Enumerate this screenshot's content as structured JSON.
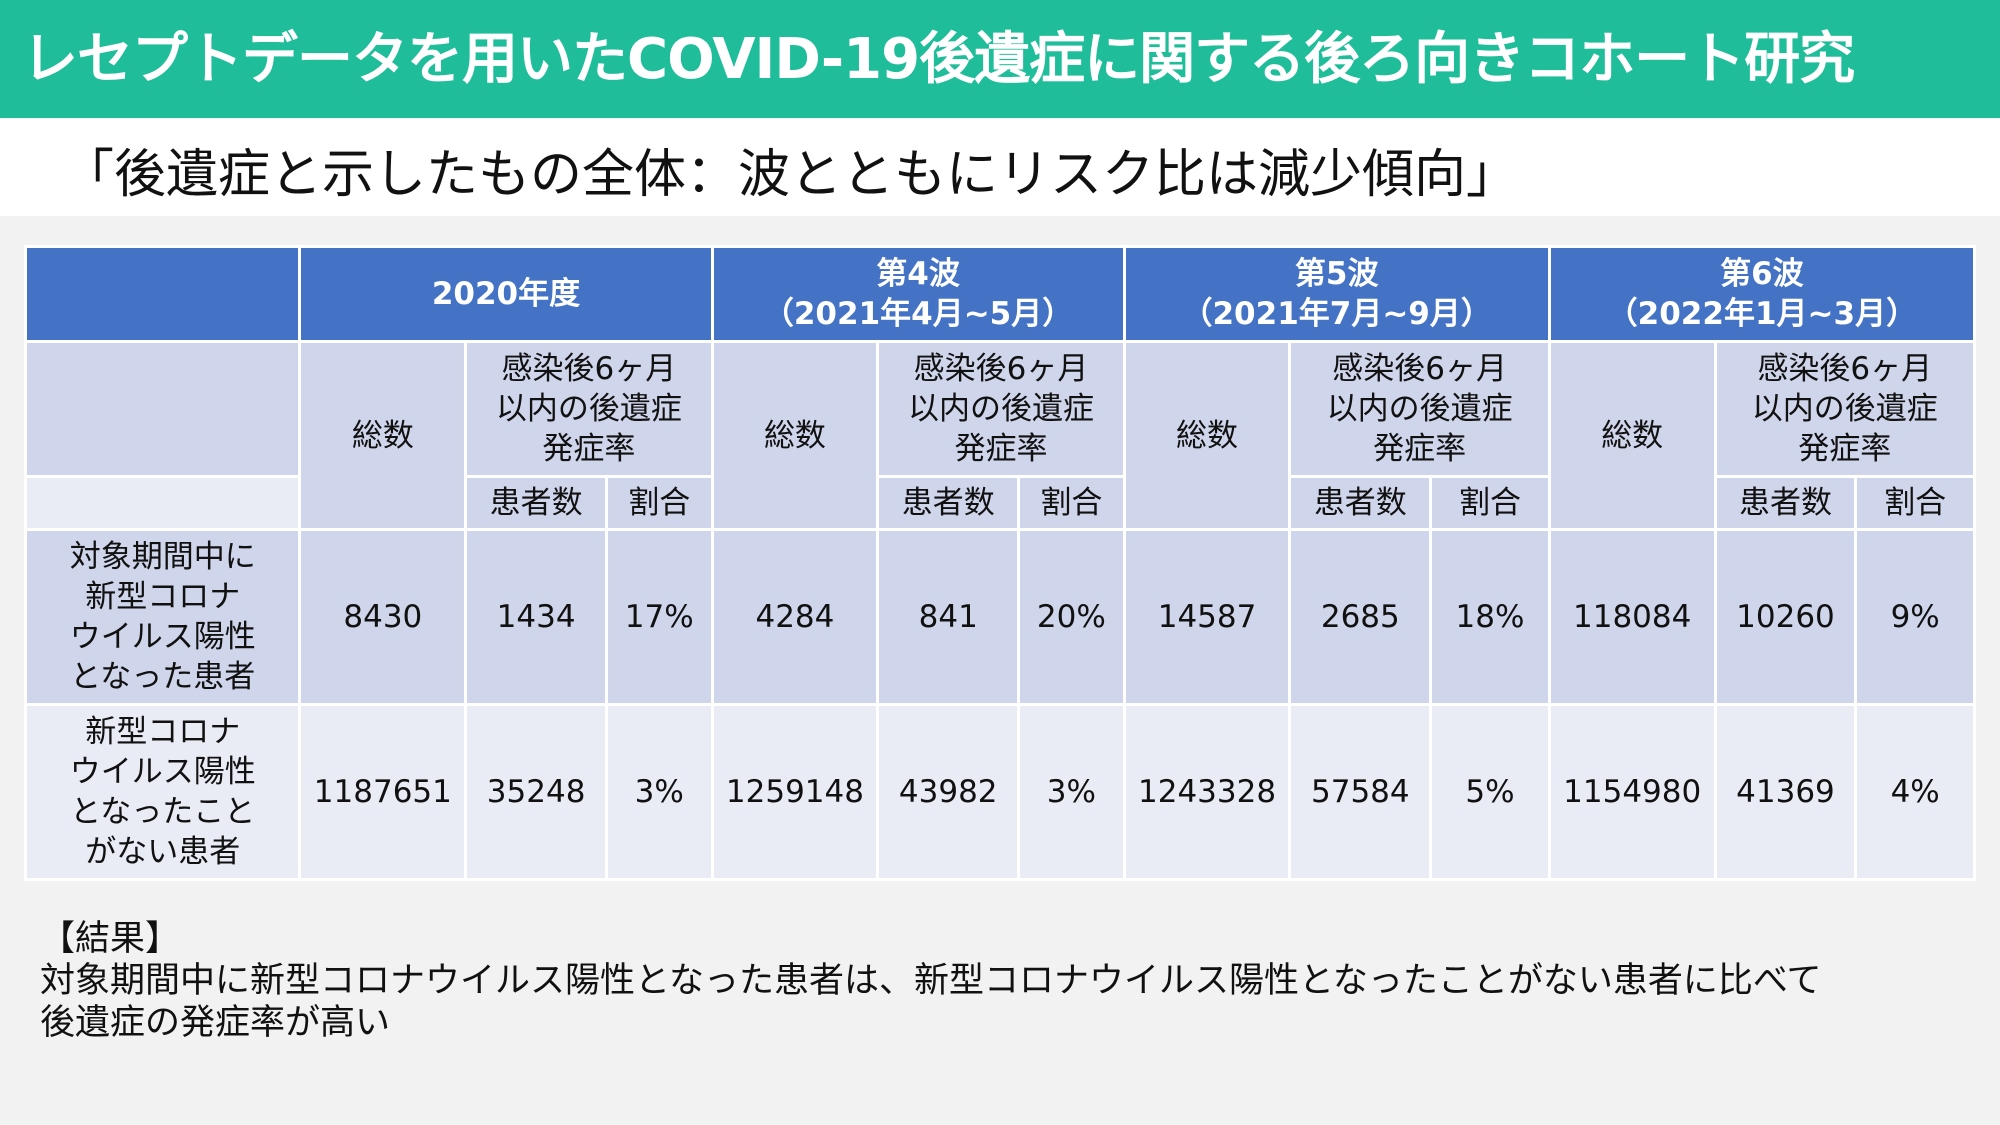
{
  "title": "レセプトデータを用いたCOVID-19後遺症に関する後ろ向きコホート研究",
  "subtitle": "「後遺症と示したもの全体：波とともにリスク比は減少傾向」",
  "table": {
    "periods": [
      {
        "line1": "2020年度",
        "line2": ""
      },
      {
        "line1": "第4波",
        "line2": "（2021年4月~5月）"
      },
      {
        "line1": "第5波",
        "line2": "（2021年7月~9月）"
      },
      {
        "line1": "第6波",
        "line2": "（2022年1月~3月）"
      }
    ],
    "total_label": "総数",
    "incidence_label": [
      "感染後6ヶ月",
      "以内の後遺症",
      "発症率"
    ],
    "patients_label": "患者数",
    "ratio_label": "割合",
    "rows": [
      {
        "label": [
          "対象期間中に",
          "新型コロナ",
          "ウイルス陽性",
          "となった患者"
        ],
        "values": [
          "8430",
          "1434",
          "17%",
          "4284",
          "841",
          "20%",
          "14587",
          "2685",
          "18%",
          "118084",
          "10260",
          "9%"
        ]
      },
      {
        "label": [
          "新型コロナ",
          "ウイルス陽性",
          "となったこと",
          "がない患者"
        ],
        "values": [
          "1187651",
          "35248",
          "3%",
          "1259148",
          "43982",
          "3%",
          "1243328",
          "57584",
          "5%",
          "1154980",
          "41369",
          "4%"
        ]
      }
    ]
  },
  "results": {
    "heading": "【結果】",
    "line1": "対象期間中に新型コロナウイルス陽性となった患者は、新型コロナウイルス陽性となったことがない患者に比べて",
    "line2": "後遺症の発症率が高い"
  },
  "colors": {
    "title_bar": "#1fbd99",
    "header_blue": "#4472c4",
    "cell_dark": "#cfd5ea",
    "cell_light": "#e9ebf5"
  }
}
